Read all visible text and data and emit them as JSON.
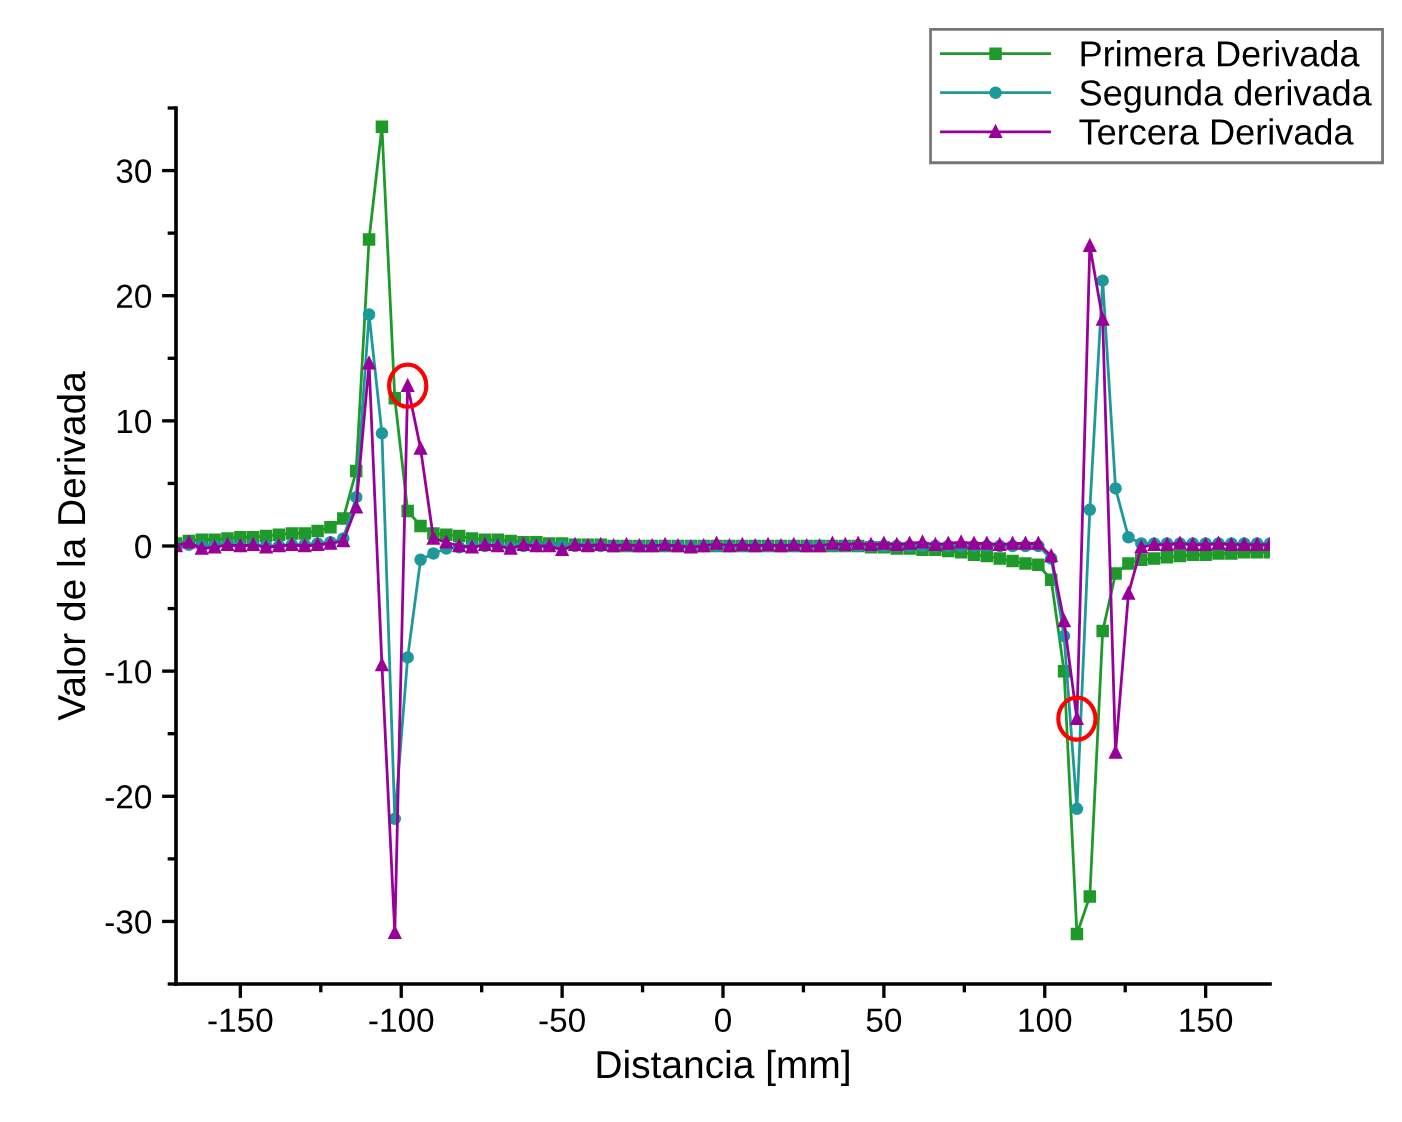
{
  "chart_data": {
    "type": "line",
    "xlabel": "Distancia [mm]",
    "ylabel": "Valor de la Derivada",
    "x": [
      -170,
      -166,
      -162,
      -158,
      -154,
      -150,
      -146,
      -142,
      -138,
      -134,
      -130,
      -126,
      -122,
      -118,
      -114,
      -110,
      -106,
      -102,
      -98,
      -94,
      -90,
      -86,
      -82,
      -78,
      -74,
      -70,
      -66,
      -62,
      -58,
      -54,
      -50,
      -46,
      -42,
      -38,
      -34,
      -30,
      -26,
      -22,
      -18,
      -14,
      -10,
      -6,
      -2,
      2,
      6,
      10,
      14,
      18,
      22,
      26,
      30,
      34,
      38,
      42,
      46,
      50,
      54,
      58,
      62,
      66,
      70,
      74,
      78,
      82,
      86,
      90,
      94,
      98,
      102,
      106,
      110,
      114,
      118,
      122,
      126,
      130,
      134,
      138,
      142,
      146,
      150,
      154,
      158,
      162,
      166,
      170
    ],
    "series": [
      {
        "name": "Primera Derivada",
        "color": "#1f9a2a",
        "marker": "square",
        "values": [
          0.2,
          0.4,
          0.5,
          0.5,
          0.6,
          0.7,
          0.7,
          0.8,
          0.9,
          1.0,
          1.0,
          1.2,
          1.5,
          2.2,
          6.0,
          24.5,
          33.5,
          11.8,
          2.8,
          1.6,
          1.0,
          0.9,
          0.8,
          0.6,
          0.5,
          0.5,
          0.4,
          0.3,
          0.3,
          0.2,
          0.2,
          0.1,
          0.1,
          0.1,
          0.0,
          0.0,
          0.0,
          0.0,
          0.0,
          0.0,
          0.0,
          0.0,
          0.0,
          0.0,
          0.0,
          0.0,
          0.0,
          0.0,
          0.0,
          0.0,
          0.0,
          0.0,
          0.0,
          0.0,
          -0.1,
          -0.1,
          -0.2,
          -0.2,
          -0.3,
          -0.3,
          -0.4,
          -0.5,
          -0.7,
          -0.8,
          -1.0,
          -1.2,
          -1.4,
          -1.5,
          -2.7,
          -10.0,
          -31.0,
          -28.0,
          -6.8,
          -2.2,
          -1.4,
          -1.1,
          -1.0,
          -0.9,
          -0.8,
          -0.7,
          -0.7,
          -0.6,
          -0.6,
          -0.5,
          -0.5,
          -0.5
        ]
      },
      {
        "name": "Segunda derivada",
        "color": "#1d9999",
        "marker": "circle",
        "values": [
          0.0,
          0.1,
          0.0,
          0.0,
          0.1,
          0.0,
          0.1,
          0.0,
          0.0,
          0.1,
          0.1,
          0.2,
          0.3,
          0.6,
          3.9,
          18.5,
          9.0,
          -21.8,
          -8.9,
          -1.1,
          -0.6,
          -0.2,
          -0.1,
          0.0,
          0.0,
          0.0,
          -0.1,
          0.0,
          0.0,
          0.0,
          0.0,
          0.0,
          0.0,
          0.0,
          0.0,
          0.0,
          0.0,
          0.0,
          0.0,
          0.0,
          0.0,
          0.0,
          0.0,
          0.0,
          0.0,
          0.0,
          0.0,
          0.0,
          0.0,
          0.0,
          0.0,
          0.0,
          0.0,
          0.0,
          0.0,
          0.0,
          0.0,
          0.0,
          0.0,
          0.0,
          0.0,
          0.0,
          0.0,
          0.0,
          0.0,
          0.0,
          0.0,
          0.0,
          -1.0,
          -7.2,
          -21.0,
          2.9,
          21.2,
          4.6,
          0.7,
          0.2,
          0.2,
          0.2,
          0.2,
          0.2,
          0.2,
          0.2,
          0.2,
          0.2,
          0.2,
          0.2
        ]
      },
      {
        "name": "Tercera Derivada",
        "color": "#990099",
        "marker": "triangle",
        "values": [
          0.0,
          0.3,
          -0.2,
          -0.1,
          0.1,
          0.0,
          0.1,
          -0.1,
          0.0,
          0.1,
          0.0,
          0.1,
          0.2,
          0.4,
          3.1,
          14.6,
          -9.5,
          -30.9,
          12.8,
          7.8,
          0.6,
          0.3,
          0.0,
          -0.1,
          0.1,
          0.0,
          -0.2,
          0.1,
          0.0,
          0.0,
          -0.3,
          0.1,
          0.0,
          0.1,
          0.0,
          0.1,
          0.0,
          0.0,
          0.1,
          0.0,
          -0.1,
          0.0,
          0.2,
          0.0,
          0.1,
          0.0,
          0.1,
          0.0,
          0.1,
          0.0,
          0.0,
          0.2,
          0.1,
          0.2,
          0.1,
          0.2,
          0.1,
          0.2,
          0.3,
          0.1,
          0.2,
          0.3,
          0.2,
          0.2,
          0.1,
          0.2,
          0.2,
          0.2,
          -0.8,
          -6.0,
          -13.8,
          24.0,
          18.1,
          -16.5,
          -3.8,
          -0.1,
          0.1,
          0.1,
          0.2,
          0.1,
          0.1,
          0.2,
          0.1,
          0.1,
          0.1,
          0.1
        ]
      }
    ],
    "xlim": [
      -170,
      170
    ],
    "xticks": [
      -150,
      -100,
      -50,
      0,
      50,
      100,
      150
    ],
    "ylim": [
      -35,
      35
    ],
    "yticks": [
      -30,
      -20,
      -10,
      0,
      10,
      20,
      30
    ],
    "grid": false,
    "legend": "top right"
  }
}
